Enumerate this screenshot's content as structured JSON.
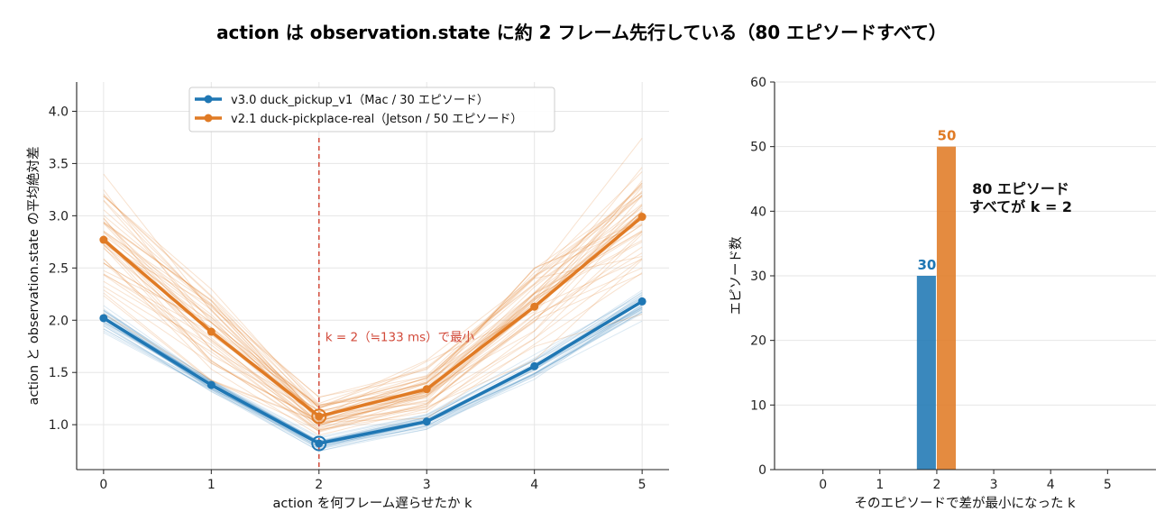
{
  "figure_title": "action は observation.state に約 2 フレーム先行している（80 エピソードすべて）",
  "colors": {
    "blue": "#1f77b4",
    "orange": "#e07b25",
    "red": "#d24a3a"
  },
  "chart_data": [
    {
      "type": "line",
      "x": [
        0,
        1,
        2,
        3,
        4,
        5
      ],
      "xlabel": "action を何フレーム遅らせたか  k",
      "ylabel": "action と observation.state の平均絶対差",
      "xlim": [
        -0.25,
        5.25
      ],
      "ylim": [
        0.57,
        4.28
      ],
      "xticks": [
        "0",
        "1",
        "2",
        "3",
        "4",
        "5"
      ],
      "yticks": [
        "1.0",
        "1.5",
        "2.0",
        "2.5",
        "3.0",
        "3.5",
        "4.0"
      ],
      "grid": true,
      "legend_position": "upper-center",
      "series": [
        {
          "name": "v3.0  duck_pickup_v1（Mac / 30 エピソード）",
          "values": [
            2.02,
            1.38,
            0.82,
            1.03,
            1.56,
            2.18
          ],
          "episodes": 30
        },
        {
          "name": "v2.1  duck-pickplace-real（Jetson / 50 エピソード）",
          "values": [
            2.77,
            1.89,
            1.08,
            1.34,
            2.13,
            2.99
          ],
          "episodes": 50
        }
      ],
      "vline": {
        "x": 2,
        "label": "k = 2（≒133 ms）で最小"
      }
    },
    {
      "type": "bar",
      "categories": [
        "0",
        "1",
        "2",
        "3",
        "4",
        "5"
      ],
      "xlabel": "そのエピソードで差が最小になった k",
      "ylabel": "エピソード数",
      "ylim": [
        0,
        60
      ],
      "yticks": [
        "0",
        "10",
        "20",
        "30",
        "40",
        "50",
        "60"
      ],
      "grid": true,
      "series": [
        {
          "values": [
            0,
            0,
            30,
            0,
            0,
            0
          ],
          "labels": [
            "",
            "",
            "30",
            "",
            "",
            ""
          ]
        },
        {
          "values": [
            0,
            0,
            50,
            0,
            0,
            0
          ],
          "labels": [
            "",
            "",
            "50",
            "",
            "",
            ""
          ]
        }
      ],
      "annotation": [
        "80 エピソード",
        "すべてが k = 2"
      ]
    }
  ]
}
